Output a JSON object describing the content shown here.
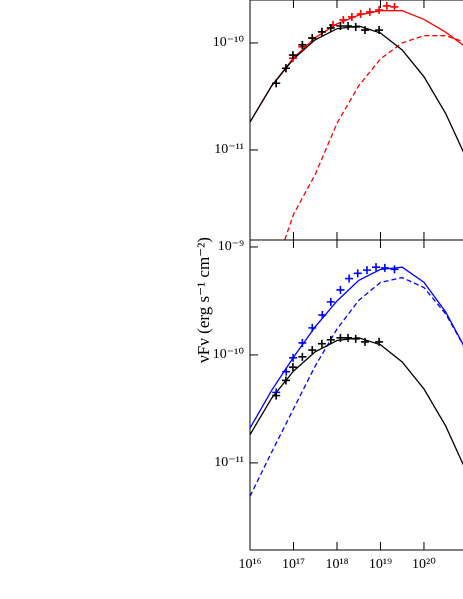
{
  "chart_data": [
    {
      "type": "line",
      "log_x": true,
      "log_y": true,
      "ylabel": "νFν (erg s⁻¹ cm⁻²)",
      "xlim": [
        1e+16,
        7.9e+20
      ],
      "ylim": [
        1.44e-12,
        2.52e-10
      ],
      "xticks": [
        1e+16,
        1e+17,
        1e+18,
        1e+19,
        1e+20
      ],
      "yticks": [
        {
          "value": 1e-10,
          "label": "10⁻¹⁰"
        },
        {
          "value": 1e-11,
          "label": "10⁻¹¹"
        }
      ],
      "series": [
        {
          "style": "solid",
          "color": "#ff0000",
          "x": [
            1e+16,
            3.16e+16,
            1e+17,
            3.16e+17,
            1e+18,
            3.16e+18,
            1e+19,
            3.16e+19,
            1e+20,
            3.16e+20,
            1e+21
          ],
          "values": [
            1.82e-11,
            3.98e-11,
            7.24e-11,
            1.12e-10,
            1.51e-10,
            1.82e-10,
            2e-10,
            2e-10,
            1.66e-10,
            1.26e-10,
            8.9e-11
          ]
        },
        {
          "style": "dashed",
          "color": "#ff0000",
          "x": [
            6.3e+16,
            1e+17,
            3.16e+17,
            1e+18,
            3.16e+18,
            1e+19,
            3.16e+19,
            1e+20,
            3.16e+20,
            1e+21
          ],
          "values": [
            1.45e-12,
            2.5e-12,
            5.9e-12,
            1.78e-11,
            3.98e-11,
            7.1e-11,
            1e-10,
            1.17e-10,
            1.17e-10,
            1e-10
          ]
        },
        {
          "style": "solid",
          "color": "#000000",
          "x": [
            1e+16,
            3.16e+16,
            1e+17,
            3.16e+17,
            1e+18,
            3.16e+18,
            1e+19,
            3.16e+19,
            1e+20,
            3.16e+20,
            1e+21
          ],
          "values": [
            1.82e-11,
            3.98e-11,
            7.08e-11,
            1.07e-10,
            1.36e-10,
            1.44e-10,
            1.24e-10,
            8.6e-11,
            4.83e-11,
            2.19e-11,
            7.9e-12
          ]
        },
        {
          "style": "points",
          "color": "#ff0000",
          "x": [
            4e+16,
            6.7e+16,
            9.7e+16,
            1.6e+17,
            2.7e+17,
            4.5e+17,
            8.1e+17,
            1.4e+18,
            2.2e+18,
            3.5e+18,
            5.7e+18,
            9.3e+18,
            1.4e+19,
            2.1e+19
          ],
          "values": [
            4.2e-11,
            5.8e-11,
            7.2e-11,
            9.2e-11,
            1.11e-10,
            1.27e-10,
            1.47e-10,
            1.64e-10,
            1.75e-10,
            1.87e-10,
            1.95e-10,
            2.03e-10,
            2.22e-10,
            2.17e-10
          ]
        },
        {
          "style": "points",
          "color": "#000000",
          "x": [
            4e+16,
            6.7e+16,
            9.7e+16,
            1.6e+17,
            2.7e+17,
            4.5e+17,
            7.2e+17,
            1.2e+18,
            1.8e+18,
            2.7e+18,
            4.4e+18,
            9.3e+18
          ],
          "values": [
            4.2e-11,
            5.8e-11,
            7.7e-11,
            9.6e-11,
            1.11e-10,
            1.27e-10,
            1.38e-10,
            1.44e-10,
            1.44e-10,
            1.41e-10,
            1.32e-10,
            1.32e-10
          ]
        }
      ]
    },
    {
      "type": "line",
      "log_x": true,
      "log_y": true,
      "xlim": [
        1e+16,
        7.9e+20
      ],
      "ylim": [
        1.56e-12,
        1.16e-09
      ],
      "xticks": [
        {
          "value": 1e+16,
          "label": "10¹⁶"
        },
        {
          "value": 1e+17,
          "label": "10¹⁷"
        },
        {
          "value": 1e+18,
          "label": "10¹⁸"
        },
        {
          "value": 1e+19,
          "label": "10¹⁹"
        },
        {
          "value": 1e+20,
          "label": "10²⁰"
        }
      ],
      "yticks": [
        {
          "value": 1e-09,
          "label": "10⁻⁹"
        },
        {
          "value": 1e-10,
          "label": "10⁻¹⁰"
        },
        {
          "value": 1e-11,
          "label": "10⁻¹¹"
        }
      ],
      "series": [
        {
          "style": "solid",
          "color": "#0000ff",
          "x": [
            1e+16,
            3.16e+16,
            1e+17,
            3.16e+17,
            1e+18,
            3.16e+18,
            1e+19,
            3.16e+19,
            1e+20,
            3.16e+20,
            1e+21
          ],
          "values": [
            2.1e-11,
            4.7e-11,
            9.5e-11,
            1.82e-10,
            3.16e-10,
            4.9e-10,
            6.2e-10,
            6.5e-10,
            4.7e-10,
            2.5e-10,
            1.05e-10
          ]
        },
        {
          "style": "dashed",
          "color": "#0000ff",
          "x": [
            1e+16,
            3.16e+16,
            1e+17,
            3.16e+17,
            1e+18,
            3.16e+18,
            1e+19,
            3.16e+19,
            1e+20,
            3.16e+20,
            1e+21
          ],
          "values": [
            4.9e-12,
            1.26e-11,
            3.16e-11,
            7.9e-11,
            1.74e-10,
            3.2e-10,
            4.7e-10,
            5.2e-10,
            4.2e-10,
            2.4e-10,
            1.05e-10
          ]
        },
        {
          "style": "solid",
          "color": "#000000",
          "x": [
            1e+16,
            3.16e+16,
            1e+17,
            3.16e+17,
            1e+18,
            3.16e+18,
            1e+19,
            3.16e+19,
            1e+20,
            3.16e+20,
            1e+21
          ],
          "values": [
            1.82e-11,
            3.98e-11,
            7.08e-11,
            1.07e-10,
            1.36e-10,
            1.44e-10,
            1.24e-10,
            8.6e-11,
            4.83e-11,
            2.19e-11,
            7.9e-12
          ]
        },
        {
          "style": "points",
          "color": "#0000ff",
          "x": [
            4e+16,
            6.8e+16,
            9.8e+16,
            1.6e+17,
            2.7e+17,
            4.6e+17,
            7.2e+17,
            1.2e+18,
            1.9e+18,
            3e+18,
            4.9e+18,
            7.9e+18,
            1.26e+19,
            2.1e+19
          ],
          "values": [
            4.5e-11,
            7e-11,
            9.4e-11,
            1.29e-10,
            1.78e-10,
            2.34e-10,
            3.1e-10,
            4e-10,
            5.1e-10,
            5.7e-10,
            6.1e-10,
            6.5e-10,
            6.4e-10,
            6.2e-10
          ]
        },
        {
          "style": "points",
          "color": "#000000",
          "x": [
            4e+16,
            6.7e+16,
            9.7e+16,
            1.6e+17,
            2.7e+17,
            4.5e+17,
            7.2e+17,
            1.2e+18,
            1.8e+18,
            2.7e+18,
            4.4e+18,
            9.3e+18
          ],
          "values": [
            4.2e-11,
            5.8e-11,
            7.7e-11,
            9.6e-11,
            1.11e-10,
            1.27e-10,
            1.38e-10,
            1.44e-10,
            1.44e-10,
            1.41e-10,
            1.32e-10,
            1.32e-10
          ]
        }
      ]
    }
  ]
}
